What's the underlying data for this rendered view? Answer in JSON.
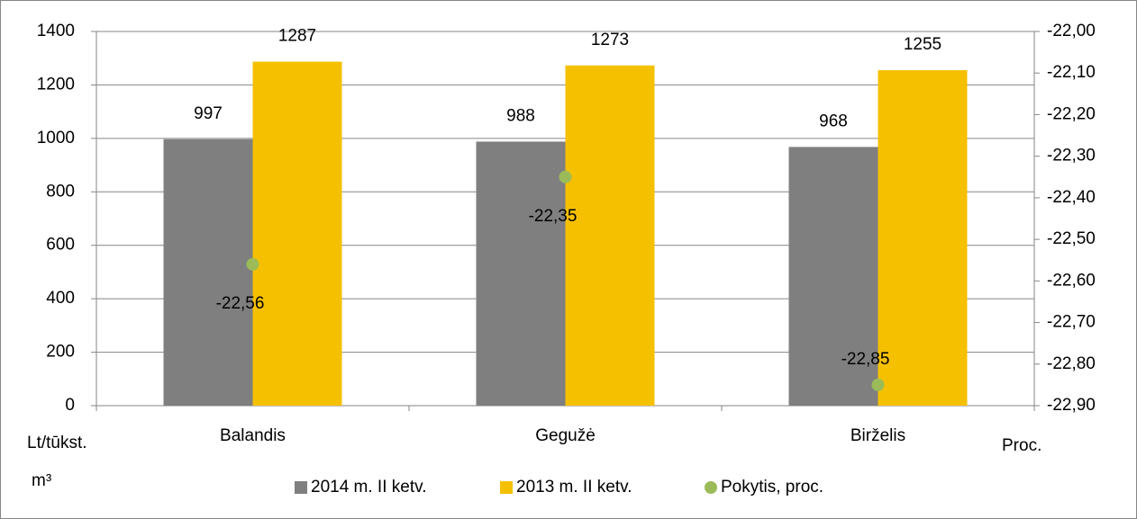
{
  "chart_data": {
    "type": "bar",
    "categories": [
      "Balandis",
      "Gegužė",
      "Birželis"
    ],
    "series": [
      {
        "name": "2014 m. II ketv.",
        "color": "#7f7f7f",
        "values": [
          997,
          988,
          968
        ]
      },
      {
        "name": "2013 m. II ketv.",
        "color": "#f5c000",
        "values": [
          1287,
          1273,
          1255
        ]
      },
      {
        "name": "Pokytis, proc.",
        "color": "#9bbb59",
        "type": "scatter",
        "axis": "y2",
        "values": [
          -22.56,
          -22.35,
          -22.85
        ],
        "value_labels": [
          "-22,56",
          "-22,35",
          "-22,85"
        ]
      }
    ],
    "ylim": [
      0,
      1400
    ],
    "yticks": [
      0,
      200,
      400,
      600,
      800,
      1000,
      1200,
      1400
    ],
    "y2lim": [
      -22.9,
      -22.0
    ],
    "y2ticks": [
      {
        "value": -22.9,
        "label": "-22,90"
      },
      {
        "value": -22.8,
        "label": "-22,80"
      },
      {
        "value": -22.7,
        "label": "-22,70"
      },
      {
        "value": -22.6,
        "label": "-22,60"
      },
      {
        "value": -22.5,
        "label": "-22,50"
      },
      {
        "value": -22.4,
        "label": "-22,40"
      },
      {
        "value": -22.3,
        "label": "-22,30"
      },
      {
        "value": -22.2,
        "label": "-22,20"
      },
      {
        "value": -22.1,
        "label": "-22,10"
      },
      {
        "value": -22.0,
        "label": "-22,00"
      }
    ],
    "ylabel": [
      "Lt/tūkst.",
      "m³"
    ],
    "y2label": "Proc.",
    "grid": true,
    "legend": "bottom"
  }
}
